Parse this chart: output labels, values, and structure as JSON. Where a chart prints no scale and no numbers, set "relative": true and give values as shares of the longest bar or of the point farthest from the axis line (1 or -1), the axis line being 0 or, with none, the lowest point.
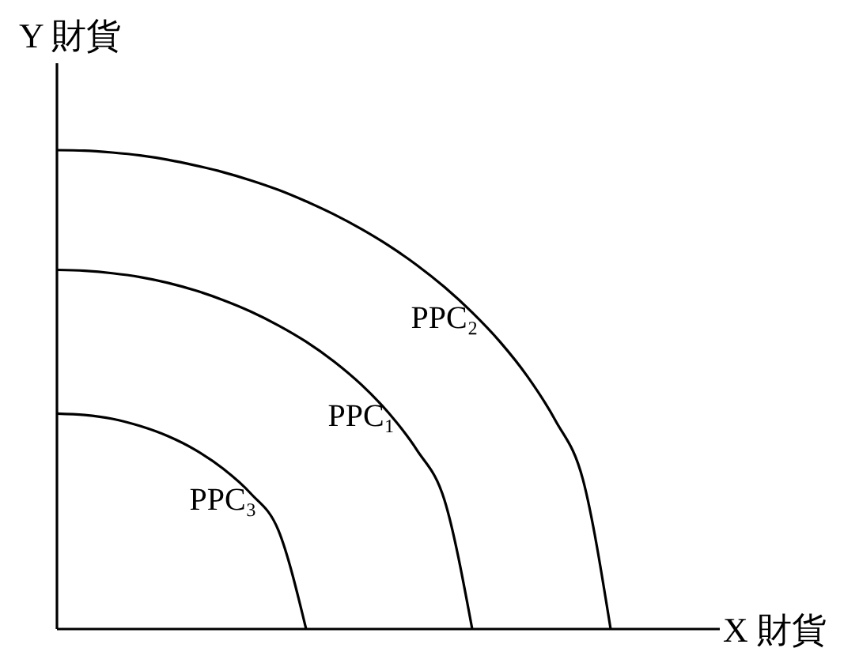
{
  "chart_data": {
    "type": "line",
    "relative": true,
    "xlabel": "X 財貨",
    "ylabel": "Y 財貨",
    "marker": "none",
    "line_style": "solid",
    "categories": [
      null,
      null,
      null,
      null,
      null,
      null,
      null,
      null,
      null,
      null,
      null,
      null,
      null,
      null,
      null,
      null,
      null,
      null,
      null,
      null,
      null,
      null,
      null,
      null,
      null
    ],
    "series": [
      {
        "name": "PPC₂",
        "color": "#000000",
        "values": [
          1,
          0.999,
          0.995,
          0.989,
          0.98,
          0.968,
          0.954,
          0.937,
          0.917,
          0.893,
          0.866,
          0.835,
          0.8,
          0.76,
          0.714,
          0.661,
          0.6,
          0.527,
          0.436,
          0.312,
          0,
          null,
          null,
          null,
          null
        ]
      },
      {
        "name": "PPC₁",
        "color": "#000000",
        "values": [
          0.75,
          0.748,
          0.743,
          0.735,
          0.723,
          0.707,
          0.687,
          0.663,
          0.634,
          0.6,
          0.559,
          0.51,
          0.45,
          0.374,
          0.269,
          0,
          null,
          null,
          null,
          null,
          null,
          null,
          null,
          null,
          null
        ]
      },
      {
        "name": "PPC₃",
        "color": "#000000",
        "values": [
          0.45,
          0.447,
          0.439,
          0.424,
          0.403,
          0.374,
          0.335,
          0.283,
          0.206,
          0,
          null,
          null,
          null,
          null,
          null,
          null,
          null,
          null,
          null,
          null,
          null,
          null,
          null,
          null,
          null
        ]
      }
    ]
  }
}
